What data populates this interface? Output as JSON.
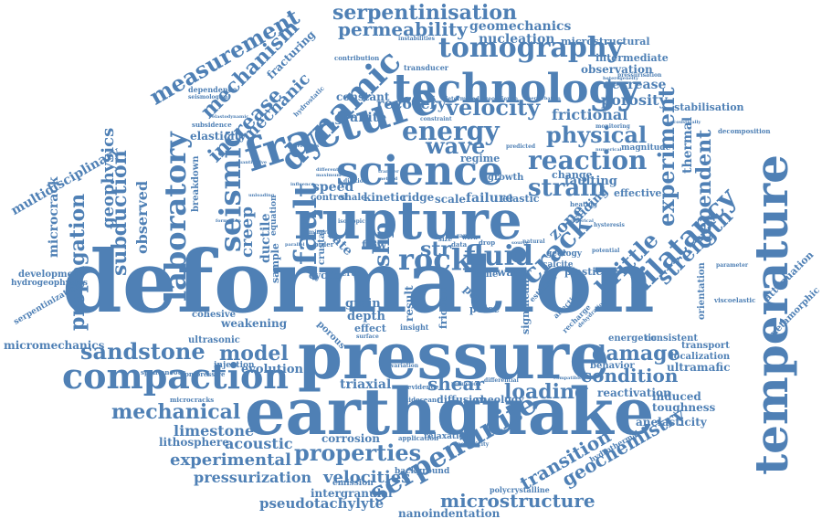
{
  "accent_color": "#4f80b5",
  "words": {
    "deformation": "deformation",
    "pressure": "pressure",
    "earthquake": "earthquake",
    "rupture": "rupture",
    "temperature": "temperature",
    "fracture": "fracture",
    "science": "science",
    "technology": "technology",
    "compaction": "compaction",
    "serpentinite": "serpentinite",
    "tomography": "tomography",
    "dynamic": "dynamic",
    "seismic": "seismic",
    "laboratory": "laboratory",
    "fault": "fault",
    "rock": "rock",
    "fluid": "fluid",
    "crack": "crack",
    "dilatancy": "dilatancy",
    "brittle": "brittle",
    "strain": "strain",
    "energy": "energy",
    "reaction": "reaction",
    "sandstone": "sandstone",
    "properties": "properties",
    "mechanical": "mechanical",
    "experimental": "experimental",
    "measurement": "measurement",
    "mechanism": "mechanism",
    "serpentinisation": "serpentinisation",
    "permeability": "permeability",
    "velocity": "velocity",
    "physical": "physical",
    "wave": "wave",
    "experiment": "experiment",
    "dependent": "dependent",
    "strength": "strength",
    "subduction": "subduction",
    "propagation": "propagation",
    "geophysics": "geophysics",
    "increase": "increase",
    "mechanic": "mechanic",
    "model": "model",
    "damage": "damage",
    "condition": "condition",
    "loading": "loading",
    "shear": "shear",
    "transition": "transition",
    "geochemistry": "geochemistry",
    "microstructure": "microstructure",
    "velocities": "velocities",
    "pressurization": "pressurization",
    "pseudotachylyte": "pseudotachylyte",
    "limestone": "limestone",
    "acoustic": "acoustic",
    "lithosphere": "lithosphere",
    "micromechanics": "micromechanics",
    "multidisciplinary": "multidisciplinary",
    "microcrack": "microcrack",
    "creep": "creep",
    "slip": "slip",
    "frictional": "frictional",
    "porosity": "porosity",
    "nucleation": "nucleation",
    "geomechanics": "geomechanics",
    "microstructural": "microstructural",
    "intermediate": "intermediate",
    "observation": "observation",
    "decrease": "decrease",
    "recovery": "recovery",
    "granite": "granite",
    "constant": "constant",
    "speed": "speed",
    "kinetic": "kinetic",
    "ridge": "ridge",
    "scale": "scale",
    "failure": "failure",
    "elastic": "elastic",
    "faulting": "faulting",
    "effective": "effective",
    "change": "change",
    "regime": "regime",
    "growth": "growth",
    "sliding": "sliding",
    "zone": "zone",
    "thermal": "thermal",
    "stabilisation": "stabilisation",
    "decomposition": "decomposition",
    "magnitude": "magnitude",
    "attenuation": "attenuation",
    "metamorphic": "metamorphic",
    "viscoelastic": "viscoelastic",
    "orientation": "orientation",
    "calcite": "calcite",
    "plastic": "plastic",
    "evolution": "evolution",
    "triaxial": "triaxial",
    "grain": "grain",
    "depth": "depth",
    "effect": "effect",
    "friction": "friction",
    "pulse": "pulse",
    "significant": "significant",
    "energetic": "energetic",
    "consistent": "consistent",
    "transport": "transport",
    "localization": "localization",
    "ultramafic": "ultramafic",
    "behavior": "behavior",
    "reactivation": "reactivation",
    "induced": "induced",
    "toughness": "toughness",
    "anelasticity": "anelasticity",
    "hydrothermal": "hydrothermal",
    "polycrystalline": "polycrystalline",
    "nanoindentation": "nanoindentation",
    "intergranular": "intergranular",
    "emission": "emission",
    "background": "background",
    "corrosion": "corrosion",
    "relaxation": "relaxation",
    "diffusion": "diffusion",
    "rheology": "rheology",
    "ultrasonic": "ultrasonic",
    "injection": "injection",
    "cohesive": "cohesive",
    "weakening": "weakening",
    "porous": "porous",
    "compressive": "compressive",
    "spontaneous": "spontaneous",
    "microcracks": "microcracks",
    "development": "development",
    "hydrogeophysics": "hydrogeophysics",
    "serpentinization": "serpentinization",
    "elasticity": "elasticity",
    "subsidence": "subsidence",
    "dependence": "dependence",
    "seismological": "seismological",
    "fracturing": "fracturing",
    "transducer": "transducer",
    "contribution": "contribution",
    "instabilities": "instabilities",
    "shale": "shale",
    "control": "control",
    "flow": "flow",
    "cyclic": "cyclic",
    "crust": "crust",
    "crustal": "crustal",
    "rate": "rate",
    "ductile": "ductile",
    "sample": "sample",
    "observed": "observed",
    "breakdown": "breakdown",
    "equation": "equation",
    "result": "result",
    "pore": "pore",
    "time": "time",
    "water": "water",
    "stress": "str",
    "heating": "heating",
    "geology": "geology",
    "hysteresis": "hysteresis",
    "potential": "potential",
    "estimate": "estimate",
    "recharge": "recharge",
    "dehydration": "dehydration",
    "affecting": "affecting",
    "insight": "insight",
    "surface": "surface",
    "dilation": "dilation",
    "variation": "variation",
    "evidence": "evidence",
    "midocean": "midocean",
    "application": "application",
    "reduction": "reduction",
    "differential": "differential",
    "compatible": "compatible",
    "inelasticity": "inelasticity",
    "hydrostatic": "hydrostatic",
    "determined": "determined",
    "geoscience": "geoscience",
    "perturbation": "perturbation",
    "monitoring": "monitoring",
    "heterogeneity": "heterogeneity",
    "pressurisation": "pressurisation",
    "acoustically": "acoustically",
    "constraint": "constraint",
    "predicted": "predicted",
    "numerical": "numerical",
    "spherical": "spherical",
    "source": "source",
    "natural": "natural",
    "range": "range",
    "size": "size",
    "drop": "drop",
    "data": "data",
    "work": "work",
    "order": "order",
    "parameter": "parameter",
    "mineral": "mineral",
    "parallel": "parallel",
    "isotropic": "isotropic",
    "influence": "influence",
    "maximum": "maximum",
    "different": "different",
    "quantitative": "quantitative",
    "elastodynamic": "elastodynamic",
    "unloading": "unloading",
    "processes": "processes",
    "formation": "formation",
    "transfer": "transfer",
    "method": "method"
  }
}
